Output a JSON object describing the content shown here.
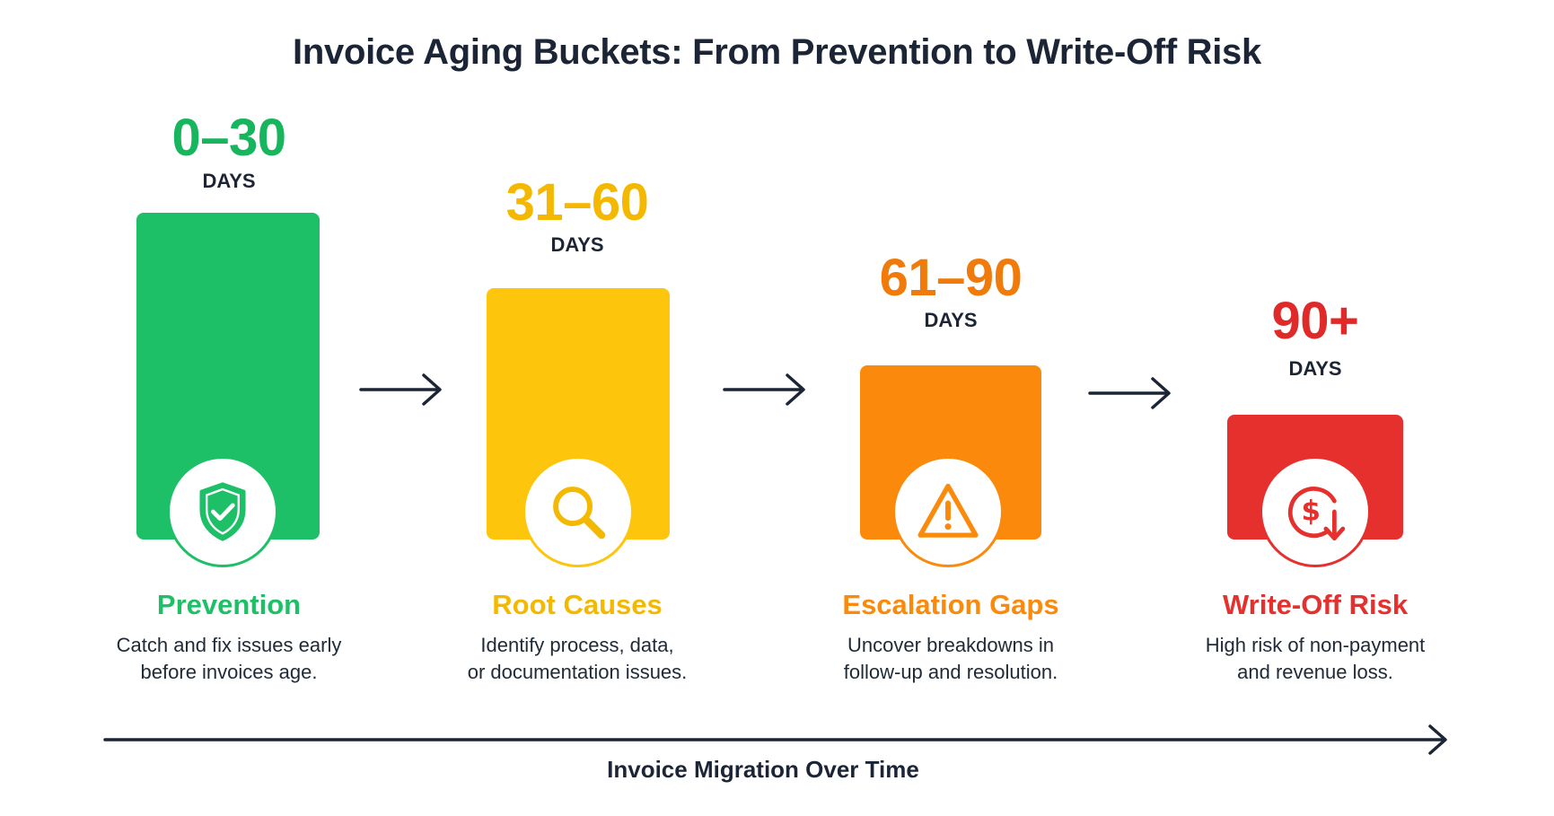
{
  "title": "Invoice Aging Buckets: From Prevention to Write-Off Risk",
  "colors": {
    "green": "#1ec067",
    "yellow": "#fdc50c",
    "orange": "#fb8a0c",
    "red": "#e5302e",
    "dark": "#1c2536"
  },
  "buckets": [
    {
      "range": "0–30",
      "unit": "DAYS",
      "name": "Prevention",
      "desc_line1": "Catch and fix issues early",
      "desc_line2": "before invoices age.",
      "icon": "shield-check-icon",
      "color": "#1ec067",
      "range_color": "#17b55e"
    },
    {
      "range": "31–60",
      "unit": "DAYS",
      "name": "Root Causes",
      "desc_line1": "Identify process, data,",
      "desc_line2": "or documentation issues.",
      "icon": "magnifier-icon",
      "color": "#fdc50c",
      "range_color": "#f5b800"
    },
    {
      "range": "61–90",
      "unit": "DAYS",
      "name": "Escalation Gaps",
      "desc_line1": "Uncover breakdowns in",
      "desc_line2": "follow-up and resolution.",
      "icon": "warning-triangle-icon",
      "color": "#fb8a0c",
      "range_color": "#f07a0a"
    },
    {
      "range": "90+",
      "unit": "DAYS",
      "name": "Write-Off Risk",
      "desc_line1": "High risk of non-payment",
      "desc_line2": "and revenue loss.",
      "icon": "dollar-down-icon",
      "color": "#e5302e",
      "range_color": "#e02a2a"
    }
  ],
  "axis_label": "Invoice Migration Over Time"
}
